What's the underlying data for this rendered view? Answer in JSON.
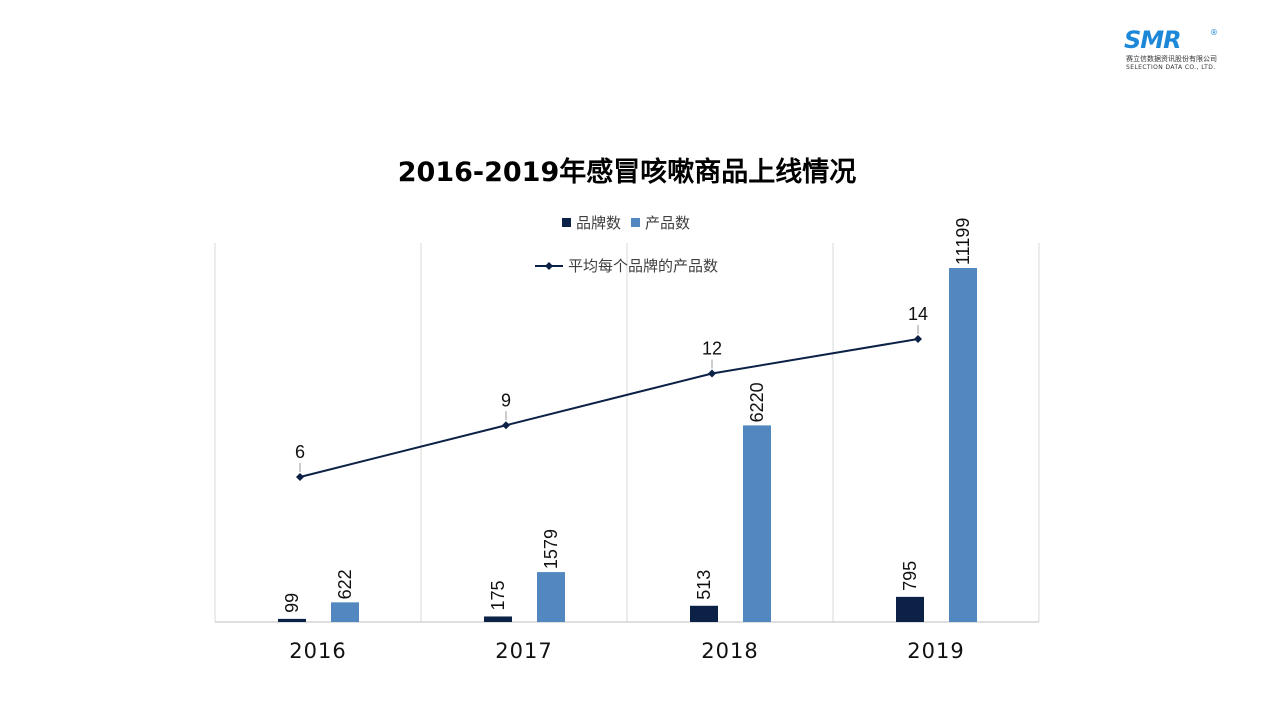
{
  "logo": {
    "mark": "SMR",
    "reg": "®",
    "cn": "赛立信数据资讯股份有限公司",
    "en": "SELECTION DATA CO., LTD."
  },
  "chart_data": {
    "type": "bar",
    "title": "2016-2019年感冒咳嗽商品上线情况",
    "categories": [
      "2016",
      "2017",
      "2018",
      "2019"
    ],
    "series": [
      {
        "name": "品牌数",
        "type": "bar",
        "color": "#0c2146",
        "values": [
          99,
          175,
          513,
          795
        ]
      },
      {
        "name": "产品数",
        "type": "bar",
        "color": "#5288bf",
        "values": [
          622,
          1579,
          6220,
          11199
        ]
      },
      {
        "name": "平均每个品牌的产品数",
        "type": "line",
        "color": "#0c2146",
        "values": [
          6,
          9,
          12,
          14
        ]
      }
    ],
    "ylim": [
      0,
      12000
    ],
    "line_ylim": [
      0,
      20
    ],
    "legend_position": "top",
    "grid": "vertical"
  }
}
